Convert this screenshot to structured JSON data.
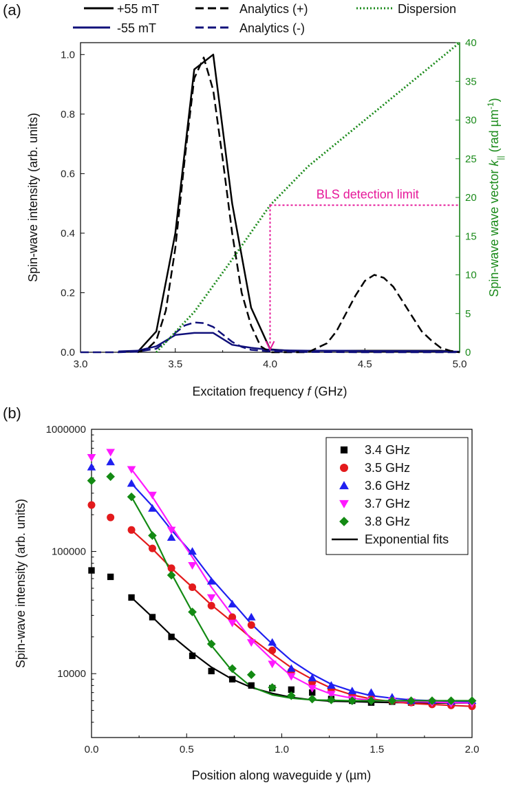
{
  "chart_data": [
    {
      "panel_label": "(a)",
      "type": "line",
      "xlabel_pre": "Excitation frequency ",
      "xlabel_var": "f",
      "xlabel_post": " (GHz)",
      "ylabel": "Spin-wave intensity (arb. units)",
      "y2label_pre": "Spin-wave wave vector ",
      "y2label_var": "k",
      "y2label_sub": "||",
      "y2label_unit": " (rad µm",
      "y2label_sup": "-1",
      "y2label_close": ")",
      "xlim": [
        3.0,
        5.0
      ],
      "ylim": [
        0,
        1.04
      ],
      "y2lim": [
        0,
        40
      ],
      "xticks": [
        "3.0",
        "3.5",
        "4.0",
        "4.5",
        "5.0"
      ],
      "yticks": [
        "0.0",
        "0.2",
        "0.4",
        "0.6",
        "0.8",
        "1.0"
      ],
      "y2ticks": [
        "0",
        "5",
        "10",
        "15",
        "20",
        "25",
        "30",
        "35",
        "40"
      ],
      "annotation": "BLS detection limit",
      "annotation_point": {
        "x": 4.0,
        "k": 19
      },
      "colors": {
        "black": "#000000",
        "navy": "#10107a",
        "green": "#1a8a1a",
        "magenta": "#e6199a"
      },
      "series": [
        {
          "name": "+55 mT",
          "style": "solid",
          "color": "#000000",
          "axis": "left",
          "x": [
            3.3,
            3.4,
            3.5,
            3.6,
            3.7,
            3.8,
            3.9,
            4.0,
            4.1,
            4.2,
            4.3,
            4.4,
            4.5,
            4.6,
            4.7,
            4.8,
            4.9,
            5.0
          ],
          "y": [
            0.0,
            0.07,
            0.4,
            0.95,
            1.0,
            0.5,
            0.15,
            0.01,
            0.005,
            0.005,
            0.005,
            0.005,
            0.005,
            0.005,
            0.005,
            0.005,
            0.005,
            0.0
          ]
        },
        {
          "name": "-55 mT",
          "style": "solid",
          "color": "#10107a",
          "axis": "left",
          "x": [
            3.2,
            3.3,
            3.4,
            3.5,
            3.6,
            3.7,
            3.8,
            3.9,
            4.0,
            4.1,
            4.2,
            4.3,
            4.4,
            4.5,
            4.6,
            4.7,
            4.8,
            4.9,
            5.0
          ],
          "y": [
            0.003,
            0.005,
            0.02,
            0.058,
            0.065,
            0.065,
            0.025,
            0.015,
            0.008,
            0.006,
            0.005,
            0.005,
            0.005,
            0.004,
            0.004,
            0.004,
            0.004,
            0.003,
            0.002
          ]
        },
        {
          "name": "Analytics (+)",
          "style": "dashed",
          "color": "#000000",
          "axis": "left",
          "x": [
            3.3,
            3.35,
            3.4,
            3.45,
            3.5,
            3.55,
            3.6,
            3.65,
            3.7,
            3.75,
            3.8,
            3.85,
            3.9,
            3.95,
            4.0,
            4.1,
            4.2,
            4.3,
            4.35,
            4.4,
            4.45,
            4.5,
            4.55,
            4.6,
            4.65,
            4.7,
            4.75,
            4.8,
            4.85,
            4.9,
            4.95,
            5.0
          ],
          "y": [
            0.0,
            0.01,
            0.04,
            0.14,
            0.35,
            0.65,
            0.92,
            0.99,
            0.88,
            0.65,
            0.4,
            0.2,
            0.09,
            0.02,
            0.0,
            0.0,
            0.0,
            0.03,
            0.07,
            0.13,
            0.19,
            0.24,
            0.26,
            0.25,
            0.22,
            0.17,
            0.12,
            0.07,
            0.04,
            0.015,
            0.005,
            0.0
          ]
        },
        {
          "name": "Analytics (-)",
          "style": "dashed",
          "color": "#10107a",
          "axis": "left",
          "x": [
            3.0,
            3.2,
            3.3,
            3.4,
            3.45,
            3.5,
            3.55,
            3.6,
            3.65,
            3.7,
            3.75,
            3.8,
            3.85,
            3.9,
            4.0,
            4.2,
            4.5,
            4.8,
            5.0
          ],
          "y": [
            0.0,
            0.0,
            0.002,
            0.012,
            0.035,
            0.065,
            0.09,
            0.1,
            0.098,
            0.085,
            0.06,
            0.035,
            0.018,
            0.008,
            0.003,
            0.001,
            0.0,
            0.0,
            0.0
          ]
        },
        {
          "name": "Dispersion",
          "style": "dotted",
          "color": "#1a8a1a",
          "axis": "right",
          "x": [
            3.4,
            3.6,
            3.8,
            4.0,
            4.2,
            4.4,
            4.6,
            4.8,
            5.0
          ],
          "y": [
            0.0,
            5.2,
            12.0,
            19.0,
            24.0,
            28.0,
            32.0,
            36.0,
            40.0
          ]
        }
      ]
    },
    {
      "panel_label": "(b)",
      "type": "scatter",
      "xlabel": "Position along waveguide y (µm)",
      "ylabel": "Spin-wave intensity (arb. units)",
      "xlim": [
        0.0,
        2.0
      ],
      "ylim": [
        3000,
        1000000
      ],
      "yscale": "log",
      "xticks": [
        "0.0",
        "0.5",
        "1.0",
        "1.5",
        "2.0"
      ],
      "ytick_values": [
        10000,
        100000,
        1000000
      ],
      "yticks": [
        "10000",
        "100000",
        "1000000"
      ],
      "legend_placement": "top-right",
      "x": [
        0.0,
        0.1,
        0.21,
        0.32,
        0.42,
        0.53,
        0.63,
        0.74,
        0.84,
        0.95,
        1.05,
        1.16,
        1.26,
        1.37,
        1.47,
        1.58,
        1.68,
        1.79,
        1.89,
        2.0
      ],
      "series": [
        {
          "name": "3.4 GHz",
          "marker": "square",
          "color": "#000000",
          "y": [
            70000,
            62000,
            42000,
            29000,
            20000,
            14000,
            10500,
            9000,
            8000,
            7600,
            7400,
            7000,
            6200,
            6000,
            5800,
            5900,
            5800,
            5700,
            5700,
            5600
          ]
        },
        {
          "name": "3.5 GHz",
          "marker": "circle",
          "color": "#e31a1c",
          "y": [
            240000,
            190000,
            150000,
            106000,
            73000,
            51000,
            36000,
            29000,
            25000,
            15500,
            10500,
            8500,
            7500,
            6800,
            6200,
            6000,
            5800,
            5600,
            5500,
            5400
          ]
        },
        {
          "name": "3.6 GHz",
          "marker": "triangle-up",
          "color": "#1f1ff0",
          "y": [
            490000,
            540000,
            360000,
            225000,
            130000,
            100000,
            57000,
            37000,
            29000,
            18000,
            11000,
            9200,
            8000,
            7200,
            7000,
            6400,
            6000,
            6000,
            5900,
            6000
          ]
        },
        {
          "name": "3.7 GHz",
          "marker": "triangle-down",
          "color": "#ff19ff",
          "y": [
            590000,
            650000,
            470000,
            290000,
            150000,
            77000,
            42000,
            26000,
            18000,
            12000,
            9500,
            7600,
            6800,
            6200,
            6000,
            6000,
            5900,
            5800,
            5700,
            5700
          ]
        },
        {
          "name": "3.8 GHz",
          "marker": "diamond",
          "color": "#138a13",
          "y": [
            380000,
            410000,
            280000,
            135000,
            64000,
            32000,
            17500,
            11000,
            9800,
            7700,
            6600,
            6200,
            6100,
            6000,
            6000,
            6000,
            6000,
            6000,
            6000,
            6000
          ]
        }
      ],
      "fits": {
        "name": "Exponential fits",
        "x": [
          0.21,
          0.32,
          0.42,
          0.53,
          0.63,
          0.74,
          0.84,
          0.95,
          1.05,
          1.16,
          1.26,
          1.37,
          1.47,
          1.58,
          1.68,
          1.79,
          1.89,
          2.0
        ],
        "curves": [
          {
            "color": "#000000",
            "y": [
              42000,
              29000,
              20500,
              14800,
              11300,
              9000,
              7700,
              6900,
              6400,
              6100,
              5950,
              5900,
              5850,
              5800,
              5800,
              5750,
              5750,
              5750
            ]
          },
          {
            "color": "#e31a1c",
            "y": [
              150000,
              105000,
              73000,
              51000,
              36500,
              26500,
              19500,
              14500,
              11200,
              9000,
              7600,
              6700,
              6200,
              5900,
              5700,
              5600,
              5500,
              5400
            ]
          },
          {
            "color": "#1f1ff0",
            "y": [
              360000,
              235000,
              150000,
              96000,
              60000,
              38500,
              25500,
              17500,
              12800,
              9900,
              8200,
              7200,
              6600,
              6300,
              6100,
              6000,
              5950,
              5900
            ]
          },
          {
            "color": "#ff19ff",
            "y": [
              470000,
              280000,
              160000,
              90000,
              51000,
              30000,
              19000,
              13000,
              9600,
              7800,
              6800,
              6300,
              6050,
              5950,
              5900,
              5850,
              5800,
              5750
            ]
          },
          {
            "color": "#138a13",
            "y": [
              280000,
              140000,
              66000,
              32000,
              17000,
              10500,
              7800,
              6700,
              6300,
              6100,
              6050,
              6000,
              6000,
              6000,
              6000,
              6000,
              6000,
              6000
            ]
          }
        ]
      }
    }
  ]
}
